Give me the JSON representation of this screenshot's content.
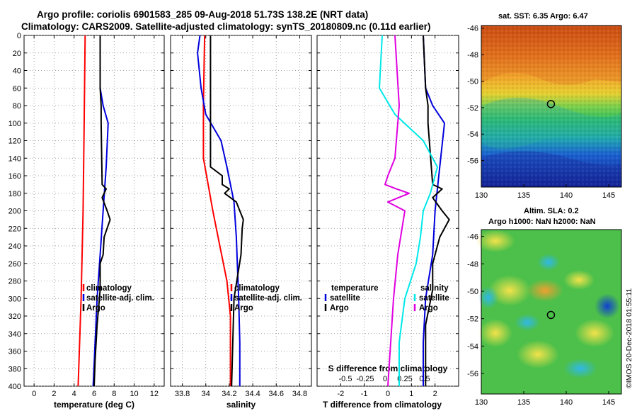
{
  "title_line1": "Argo profile: coriolis 6901583_285 09-Aug-2018 51.73S 138.2E (NRT data)",
  "title_line2": "Climatology: CARS2009. Satellite-adjusted climatology: synTS_20180809.nc (0.11d earlier)",
  "credit": "©IMOS 20-Dec-2018 01:55:11",
  "colors": {
    "red": "#ff0000",
    "blue": "#0000dd",
    "black": "#000000",
    "cyan": "#00e8e8",
    "magenta": "#e000e0"
  },
  "chart_data": [
    {
      "id": "temperature",
      "type": "line",
      "xlabel": "temperature (deg C)",
      "ylabel": "",
      "xlim": [
        -1,
        13
      ],
      "ylim": [
        400,
        0
      ],
      "xticks": [
        0,
        2,
        4,
        6,
        8,
        10,
        12
      ],
      "yticks": [
        0,
        20,
        40,
        60,
        80,
        100,
        120,
        140,
        160,
        180,
        200,
        220,
        240,
        260,
        280,
        300,
        320,
        340,
        360,
        380,
        400
      ],
      "legend": [
        "climatology",
        "satellite-adj. clim.",
        "Argo"
      ],
      "series": [
        {
          "name": "climatology",
          "color": "red",
          "depth": [
            0,
            100,
            200,
            300,
            400
          ],
          "x": [
            5.1,
            5.0,
            4.9,
            4.7,
            4.4
          ]
        },
        {
          "name": "satellite-adj. clim.",
          "color": "blue",
          "depth": [
            0,
            60,
            80,
            100,
            150,
            200,
            250,
            300,
            350,
            400
          ],
          "x": [
            6.6,
            6.6,
            6.9,
            7.4,
            7.2,
            6.9,
            6.6,
            6.3,
            6.1,
            5.9
          ]
        },
        {
          "name": "Argo",
          "color": "black",
          "depth": [
            0,
            60,
            80,
            100,
            170,
            175,
            185,
            200,
            210,
            230,
            250,
            260,
            290,
            330,
            370,
            400
          ],
          "x": [
            6.6,
            6.6,
            6.7,
            6.7,
            6.8,
            7.2,
            6.8,
            7.3,
            7.6,
            7.0,
            6.9,
            6.6,
            6.6,
            6.3,
            6.1,
            6.0
          ]
        }
      ]
    },
    {
      "id": "salinity",
      "type": "line",
      "xlabel": "salinity",
      "xlim": [
        33.7,
        34.9
      ],
      "ylim": [
        400,
        0
      ],
      "xticks": [
        33.8,
        34,
        34.2,
        34.4,
        34.6,
        34.8
      ],
      "legend": [
        "climatology",
        "satellite-adj. clim.",
        "Argo"
      ],
      "series": [
        {
          "name": "climatology",
          "color": "red",
          "depth": [
            0,
            80,
            140,
            170,
            200,
            240,
            280,
            320,
            360,
            400
          ],
          "x": [
            33.99,
            33.98,
            33.98,
            34.02,
            34.06,
            34.12,
            34.18,
            34.21,
            34.21,
            34.21
          ]
        },
        {
          "name": "satellite-adj. clim.",
          "color": "blue",
          "depth": [
            0,
            20,
            60,
            90,
            120,
            150,
            190,
            230,
            300,
            350,
            400
          ],
          "x": [
            33.95,
            33.93,
            33.96,
            34.0,
            34.13,
            34.18,
            34.24,
            34.26,
            34.28,
            34.29,
            34.29
          ]
        },
        {
          "name": "Argo",
          "color": "black",
          "depth": [
            0,
            150,
            160,
            170,
            175,
            180,
            190,
            200,
            210,
            220,
            250,
            300,
            350,
            400
          ],
          "x": [
            34.04,
            34.04,
            34.14,
            34.14,
            34.2,
            34.16,
            34.26,
            34.29,
            34.32,
            34.31,
            34.3,
            34.24,
            34.23,
            34.22
          ]
        }
      ]
    },
    {
      "id": "difference",
      "type": "line",
      "xlabel": "T difference from climatology",
      "x2label": "S difference from climatology",
      "xlim": [
        -3,
        3
      ],
      "ylim": [
        400,
        0
      ],
      "xticks": [
        -2,
        -1,
        0,
        1,
        2
      ],
      "x2ticks": [
        -0.5,
        -0.25,
        0,
        0.25,
        0.5
      ],
      "legend_left_title": "temperature",
      "legend_right_title": "salinity",
      "legend": [
        "satellite",
        "Argo",
        "satellite",
        "Argo"
      ],
      "series": [
        {
          "name": "temperature satellite",
          "color": "blue",
          "depth": [
            0,
            60,
            80,
            100,
            150,
            200,
            250,
            300,
            350,
            400
          ],
          "x": [
            1.5,
            1.6,
            1.9,
            2.4,
            2.2,
            2.0,
            1.9,
            1.6,
            1.5,
            1.5
          ]
        },
        {
          "name": "temperature Argo",
          "color": "black",
          "depth": [
            0,
            60,
            80,
            100,
            170,
            175,
            185,
            200,
            210,
            230,
            250,
            260,
            290,
            330,
            370,
            400
          ],
          "x": [
            1.5,
            1.6,
            1.7,
            1.7,
            1.9,
            2.3,
            1.9,
            2.3,
            2.6,
            2.2,
            2.0,
            1.9,
            1.9,
            1.6,
            1.6,
            1.6
          ]
        },
        {
          "name": "salinity satellite",
          "color": "cyan",
          "depth": [
            0,
            60,
            90,
            120,
            150,
            180,
            200,
            230,
            260,
            300,
            350,
            400
          ],
          "x": [
            -0.04,
            -0.06,
            0.05,
            0.25,
            0.35,
            0.3,
            0.25,
            0.23,
            0.2,
            0.12,
            0.08,
            0.08
          ]
        },
        {
          "name": "salinity Argo",
          "color": "magenta",
          "depth": [
            0,
            80,
            140,
            160,
            170,
            175,
            180,
            190,
            200,
            220,
            250,
            300,
            350,
            400
          ],
          "x": [
            0.05,
            0.08,
            0.05,
            0.0,
            -0.02,
            0.06,
            0.15,
            0.0,
            0.12,
            0.1,
            0.07,
            0.04,
            0.02,
            0.0
          ]
        }
      ]
    },
    {
      "id": "sst-map",
      "type": "heatmap",
      "title": "sat. SST: 6.35 Argo: 6.47",
      "xlim": [
        130,
        146.5
      ],
      "ylim": [
        -58,
        -45.8
      ],
      "xticks": [
        130,
        135,
        140,
        145
      ],
      "yticks": [
        -46,
        -48,
        -50,
        -52,
        -54,
        -56
      ],
      "float_position": {
        "lon": 138.2,
        "lat": -51.73
      }
    },
    {
      "id": "sla-map",
      "type": "heatmap",
      "title": "Altim. SLA: 0.2",
      "subtitle": "Argo h1000: NaN h2000: NaN",
      "xlim": [
        130,
        146.5
      ],
      "ylim": [
        -57.5,
        -45.5
      ],
      "xticks": [
        130,
        135,
        140,
        145
      ],
      "yticks": [
        -46,
        -48,
        -50,
        -52,
        -54,
        -56
      ],
      "float_position": {
        "lon": 138.2,
        "lat": -51.73
      }
    }
  ]
}
